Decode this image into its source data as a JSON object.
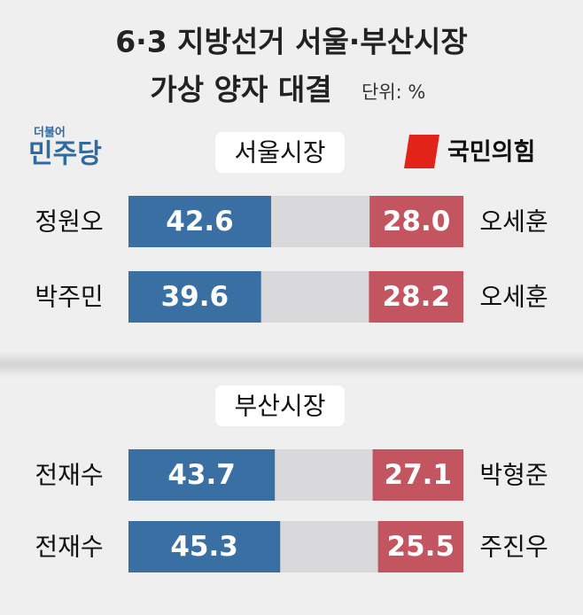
{
  "title": [
    "6·3 지방선거 서울·부산시장",
    "가상 양자 대결"
  ],
  "unit": "단위: %",
  "parties": [
    {
      "prefix": "더불어",
      "name": "민주당",
      "color": "#2f6aa3"
    },
    {
      "name": "국민의힘",
      "color": "#c0424f"
    }
  ],
  "chart_data": [
    {
      "type": "bar",
      "title": "서울시장",
      "xlim": [
        0,
        100
      ],
      "series": [
        {
          "color": "#3a6fa3",
          "candidates": [
            "정원오",
            "박주민"
          ],
          "values": [
            42.6,
            39.6
          ],
          "value_labels": [
            "42.6",
            "39.6"
          ]
        },
        {
          "color": "#c25560",
          "candidates": [
            "오세훈",
            "오세훈"
          ],
          "values": [
            28.0,
            28.2
          ],
          "value_labels": [
            "28.0",
            "28.2"
          ]
        }
      ]
    },
    {
      "type": "bar",
      "title": "부산시장",
      "xlim": [
        0,
        100
      ],
      "series": [
        {
          "color": "#3a6fa3",
          "candidates": [
            "전재수",
            "전재수"
          ],
          "values": [
            43.7,
            45.3
          ],
          "value_labels": [
            "43.7",
            "45.3"
          ]
        },
        {
          "color": "#c25560",
          "candidates": [
            "박형준",
            "주진우"
          ],
          "values": [
            27.1,
            25.5
          ],
          "value_labels": [
            "27.1",
            "25.5"
          ]
        }
      ]
    }
  ]
}
